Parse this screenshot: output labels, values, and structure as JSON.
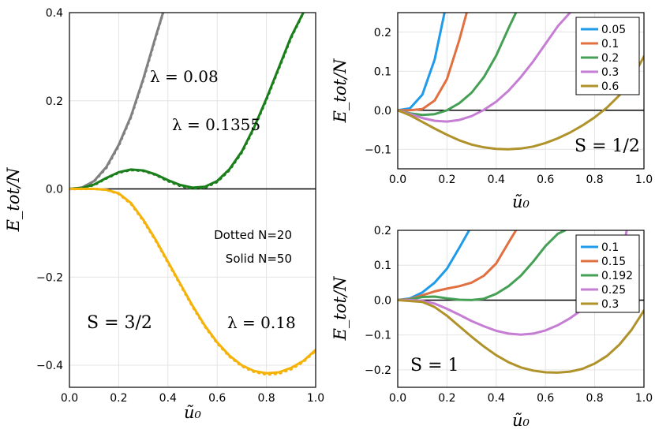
{
  "chart_data": [
    {
      "id": "main",
      "type": "line",
      "xlabel": "ũ₀",
      "ylabel": "E_tot/N",
      "xlim": [
        0,
        1
      ],
      "ylim": [
        -0.45,
        0.4
      ],
      "xticks": [
        "0.0",
        "0.2",
        "0.4",
        "0.6",
        "0.8",
        "1.0"
      ],
      "yticks": [
        "-0.4",
        "-0.2",
        "0.0",
        "0.2",
        "0.4"
      ],
      "grid": true,
      "reference_line_y": 0,
      "annotations": {
        "lambda_a": "λ = 0.08",
        "lambda_b": "λ = 0.1355",
        "lambda_c": "λ = 0.18",
        "spin": "S = 3/2",
        "note_dotted": "Dotted N=20",
        "note_solid": "Solid N=50"
      },
      "series": [
        {
          "color": "#808080",
          "style": "solid",
          "x": [
            0,
            0.05,
            0.1,
            0.15,
            0.2,
            0.25,
            0.3,
            0.35,
            0.38
          ],
          "y": [
            0,
            0.003,
            0.018,
            0.05,
            0.1,
            0.165,
            0.25,
            0.345,
            0.4
          ]
        },
        {
          "color": "#808080",
          "style": "dotted",
          "x": [
            0,
            0.05,
            0.1,
            0.15,
            0.2,
            0.25,
            0.3,
            0.35,
            0.38
          ],
          "y": [
            0,
            0.003,
            0.017,
            0.048,
            0.098,
            0.163,
            0.248,
            0.343,
            0.4
          ]
        },
        {
          "color": "#1a7f1a",
          "style": "solid",
          "x": [
            0,
            0.05,
            0.1,
            0.15,
            0.2,
            0.25,
            0.3,
            0.35,
            0.4,
            0.45,
            0.5,
            0.55,
            0.6,
            0.65,
            0.7,
            0.75,
            0.8,
            0.85,
            0.9,
            0.95
          ],
          "y": [
            0,
            0.002,
            0.01,
            0.025,
            0.038,
            0.044,
            0.042,
            0.033,
            0.02,
            0.009,
            0.003,
            0.005,
            0.018,
            0.045,
            0.085,
            0.14,
            0.205,
            0.275,
            0.345,
            0.4
          ]
        },
        {
          "color": "#1a7f1a",
          "style": "dotted",
          "x": [
            0,
            0.05,
            0.1,
            0.15,
            0.2,
            0.25,
            0.3,
            0.35,
            0.4,
            0.45,
            0.5,
            0.55,
            0.6,
            0.65,
            0.7,
            0.75,
            0.8,
            0.85,
            0.9,
            0.95
          ],
          "y": [
            0,
            0.002,
            0.009,
            0.024,
            0.037,
            0.043,
            0.041,
            0.032,
            0.018,
            0.007,
            0.001,
            0.003,
            0.016,
            0.043,
            0.083,
            0.138,
            0.203,
            0.273,
            0.343,
            0.4
          ]
        },
        {
          "color": "#f5b30a",
          "style": "solid",
          "x": [
            0,
            0.1,
            0.15,
            0.2,
            0.25,
            0.3,
            0.35,
            0.4,
            0.45,
            0.5,
            0.55,
            0.6,
            0.65,
            0.7,
            0.75,
            0.8,
            0.85,
            0.9,
            0.95,
            1.0
          ],
          "y": [
            0,
            0,
            -0.002,
            -0.01,
            -0.032,
            -0.07,
            -0.115,
            -0.165,
            -0.215,
            -0.265,
            -0.31,
            -0.348,
            -0.378,
            -0.4,
            -0.413,
            -0.418,
            -0.416,
            -0.406,
            -0.39,
            -0.365
          ]
        },
        {
          "color": "#f5b30a",
          "style": "dotted",
          "x": [
            0,
            0.1,
            0.15,
            0.2,
            0.25,
            0.3,
            0.35,
            0.4,
            0.45,
            0.5,
            0.55,
            0.6,
            0.65,
            0.7,
            0.75,
            0.8,
            0.85,
            0.9,
            0.95,
            1.0
          ],
          "y": [
            0,
            0,
            -0.002,
            -0.011,
            -0.034,
            -0.072,
            -0.117,
            -0.167,
            -0.217,
            -0.267,
            -0.312,
            -0.35,
            -0.38,
            -0.402,
            -0.415,
            -0.421,
            -0.419,
            -0.409,
            -0.392,
            -0.367
          ]
        }
      ]
    },
    {
      "id": "top_right",
      "type": "line",
      "xlabel": "ũ₀",
      "ylabel": "E_tot/N",
      "xlim": [
        0,
        1
      ],
      "ylim": [
        -0.15,
        0.25
      ],
      "xticks": [
        "0.0",
        "0.2",
        "0.4",
        "0.6",
        "0.8",
        "1.0"
      ],
      "yticks": [
        "-0.1",
        "0.0",
        "0.1",
        "0.2"
      ],
      "grid": true,
      "reference_line_y": 0,
      "legend_position": "top-right",
      "annotations": {
        "spin": "S = 1/2"
      },
      "series": [
        {
          "name": "0.05",
          "color": "#1f9bea",
          "x": [
            0,
            0.05,
            0.1,
            0.15,
            0.19
          ],
          "y": [
            0,
            0.005,
            0.04,
            0.13,
            0.25
          ]
        },
        {
          "name": "0.1",
          "color": "#e07040",
          "x": [
            0,
            0.05,
            0.1,
            0.15,
            0.2,
            0.25,
            0.28
          ],
          "y": [
            0,
            0,
            0.003,
            0.025,
            0.08,
            0.18,
            0.25
          ]
        },
        {
          "name": "0.2",
          "color": "#45a055",
          "x": [
            0,
            0.05,
            0.1,
            0.15,
            0.2,
            0.25,
            0.3,
            0.35,
            0.4,
            0.45,
            0.48
          ],
          "y": [
            0,
            -0.008,
            -0.012,
            -0.01,
            0,
            0.018,
            0.045,
            0.085,
            0.14,
            0.21,
            0.25
          ]
        },
        {
          "name": "0.3",
          "color": "#c67dd4",
          "x": [
            0,
            0.05,
            0.1,
            0.15,
            0.2,
            0.25,
            0.3,
            0.35,
            0.4,
            0.45,
            0.5,
            0.55,
            0.6,
            0.65,
            0.7
          ],
          "y": [
            0,
            -0.01,
            -0.02,
            -0.027,
            -0.029,
            -0.025,
            -0.015,
            0.001,
            0.022,
            0.05,
            0.085,
            0.125,
            0.17,
            0.215,
            0.25
          ]
        },
        {
          "name": "0.6",
          "color": "#b0922a",
          "x": [
            0,
            0.05,
            0.1,
            0.15,
            0.2,
            0.25,
            0.3,
            0.35,
            0.4,
            0.45,
            0.5,
            0.55,
            0.6,
            0.65,
            0.7,
            0.75,
            0.8,
            0.85,
            0.9,
            0.95,
            1.0
          ],
          "y": [
            0,
            -0.013,
            -0.03,
            -0.047,
            -0.063,
            -0.077,
            -0.088,
            -0.095,
            -0.099,
            -0.1,
            -0.098,
            -0.093,
            -0.084,
            -0.072,
            -0.057,
            -0.039,
            -0.018,
            0.007,
            0.038,
            0.078,
            0.138
          ]
        }
      ]
    },
    {
      "id": "bottom_right",
      "type": "line",
      "xlabel": "ũ₀",
      "ylabel": "E_tot/N",
      "xlim": [
        0,
        1
      ],
      "ylim": [
        -0.25,
        0.2
      ],
      "xticks": [
        "0.0",
        "0.2",
        "0.4",
        "0.6",
        "0.8",
        "1.0"
      ],
      "yticks": [
        "-0.2",
        "-0.1",
        "0.0",
        "0.1",
        "0.2"
      ],
      "grid": true,
      "reference_line_y": 0,
      "legend_position": "top-right",
      "annotations": {
        "spin": "S = 1"
      },
      "series": [
        {
          "name": "0.1",
          "color": "#1f9bea",
          "x": [
            0,
            0.05,
            0.1,
            0.15,
            0.2,
            0.25,
            0.29
          ],
          "y": [
            0,
            0.005,
            0.022,
            0.05,
            0.09,
            0.15,
            0.2
          ]
        },
        {
          "name": "0.15",
          "color": "#e07040",
          "x": [
            0,
            0.05,
            0.1,
            0.15,
            0.2,
            0.25,
            0.3,
            0.35,
            0.4,
            0.45,
            0.48
          ],
          "y": [
            0,
            0.003,
            0.014,
            0.025,
            0.033,
            0.04,
            0.05,
            0.07,
            0.105,
            0.165,
            0.2
          ]
        },
        {
          "name": "0.192",
          "color": "#45a055",
          "x": [
            0,
            0.05,
            0.1,
            0.15,
            0.2,
            0.25,
            0.3,
            0.35,
            0.4,
            0.45,
            0.5,
            0.55,
            0.6,
            0.65,
            0.68
          ],
          "y": [
            0,
            0.002,
            0.009,
            0.01,
            0.005,
            0.001,
            0,
            0.004,
            0.018,
            0.04,
            0.07,
            0.11,
            0.155,
            0.19,
            0.2
          ]
        },
        {
          "name": "0.25",
          "color": "#c67dd4",
          "x": [
            0,
            0.05,
            0.1,
            0.15,
            0.2,
            0.25,
            0.3,
            0.35,
            0.4,
            0.45,
            0.5,
            0.55,
            0.6,
            0.65,
            0.7,
            0.75,
            0.8,
            0.85,
            0.9,
            0.93
          ],
          "y": [
            0,
            0,
            -0.002,
            -0.01,
            -0.025,
            -0.042,
            -0.06,
            -0.075,
            -0.088,
            -0.096,
            -0.099,
            -0.096,
            -0.087,
            -0.072,
            -0.052,
            -0.027,
            0.005,
            0.045,
            0.1,
            0.2
          ]
        },
        {
          "name": "0.3",
          "color": "#b0922a",
          "x": [
            0,
            0.1,
            0.15,
            0.2,
            0.25,
            0.3,
            0.35,
            0.4,
            0.45,
            0.5,
            0.55,
            0.6,
            0.65,
            0.7,
            0.75,
            0.8,
            0.85,
            0.9,
            0.95,
            1.0
          ],
          "y": [
            0,
            -0.005,
            -0.02,
            -0.045,
            -0.075,
            -0.105,
            -0.133,
            -0.158,
            -0.178,
            -0.193,
            -0.202,
            -0.207,
            -0.208,
            -0.205,
            -0.197,
            -0.182,
            -0.16,
            -0.128,
            -0.085,
            -0.03
          ]
        }
      ]
    }
  ]
}
